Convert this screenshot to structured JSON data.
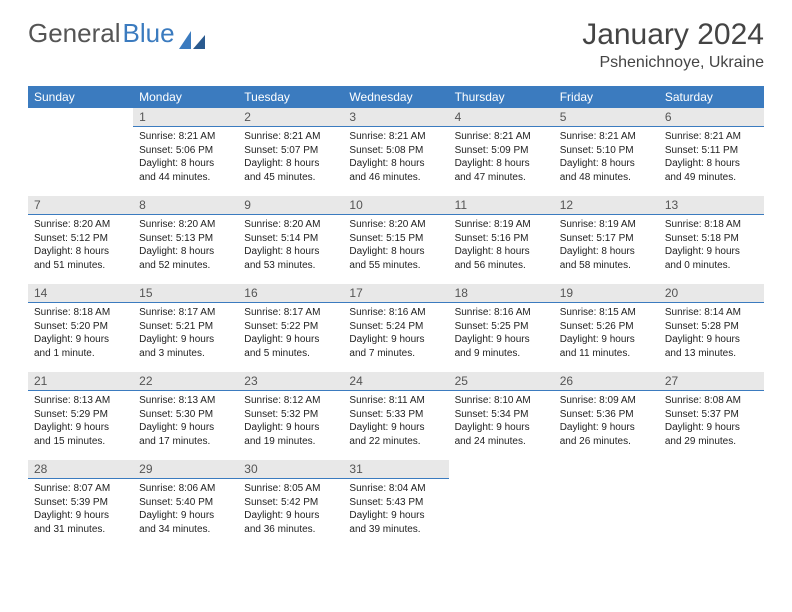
{
  "logo": {
    "part1": "General",
    "part2": "Blue"
  },
  "title": "January 2024",
  "location": "Pshenichnoye, Ukraine",
  "header_bg": "#3b7bbf",
  "daynum_bg": "#e8e8e8",
  "dayHeaders": [
    "Sunday",
    "Monday",
    "Tuesday",
    "Wednesday",
    "Thursday",
    "Friday",
    "Saturday"
  ],
  "grid": [
    [
      null,
      {
        "n": "1",
        "sr": "8:21 AM",
        "ss": "5:06 PM",
        "dl": "8 hours and 44 minutes."
      },
      {
        "n": "2",
        "sr": "8:21 AM",
        "ss": "5:07 PM",
        "dl": "8 hours and 45 minutes."
      },
      {
        "n": "3",
        "sr": "8:21 AM",
        "ss": "5:08 PM",
        "dl": "8 hours and 46 minutes."
      },
      {
        "n": "4",
        "sr": "8:21 AM",
        "ss": "5:09 PM",
        "dl": "8 hours and 47 minutes."
      },
      {
        "n": "5",
        "sr": "8:21 AM",
        "ss": "5:10 PM",
        "dl": "8 hours and 48 minutes."
      },
      {
        "n": "6",
        "sr": "8:21 AM",
        "ss": "5:11 PM",
        "dl": "8 hours and 49 minutes."
      }
    ],
    [
      {
        "n": "7",
        "sr": "8:20 AM",
        "ss": "5:12 PM",
        "dl": "8 hours and 51 minutes."
      },
      {
        "n": "8",
        "sr": "8:20 AM",
        "ss": "5:13 PM",
        "dl": "8 hours and 52 minutes."
      },
      {
        "n": "9",
        "sr": "8:20 AM",
        "ss": "5:14 PM",
        "dl": "8 hours and 53 minutes."
      },
      {
        "n": "10",
        "sr": "8:20 AM",
        "ss": "5:15 PM",
        "dl": "8 hours and 55 minutes."
      },
      {
        "n": "11",
        "sr": "8:19 AM",
        "ss": "5:16 PM",
        "dl": "8 hours and 56 minutes."
      },
      {
        "n": "12",
        "sr": "8:19 AM",
        "ss": "5:17 PM",
        "dl": "8 hours and 58 minutes."
      },
      {
        "n": "13",
        "sr": "8:18 AM",
        "ss": "5:18 PM",
        "dl": "9 hours and 0 minutes."
      }
    ],
    [
      {
        "n": "14",
        "sr": "8:18 AM",
        "ss": "5:20 PM",
        "dl": "9 hours and 1 minute."
      },
      {
        "n": "15",
        "sr": "8:17 AM",
        "ss": "5:21 PM",
        "dl": "9 hours and 3 minutes."
      },
      {
        "n": "16",
        "sr": "8:17 AM",
        "ss": "5:22 PM",
        "dl": "9 hours and 5 minutes."
      },
      {
        "n": "17",
        "sr": "8:16 AM",
        "ss": "5:24 PM",
        "dl": "9 hours and 7 minutes."
      },
      {
        "n": "18",
        "sr": "8:16 AM",
        "ss": "5:25 PM",
        "dl": "9 hours and 9 minutes."
      },
      {
        "n": "19",
        "sr": "8:15 AM",
        "ss": "5:26 PM",
        "dl": "9 hours and 11 minutes."
      },
      {
        "n": "20",
        "sr": "8:14 AM",
        "ss": "5:28 PM",
        "dl": "9 hours and 13 minutes."
      }
    ],
    [
      {
        "n": "21",
        "sr": "8:13 AM",
        "ss": "5:29 PM",
        "dl": "9 hours and 15 minutes."
      },
      {
        "n": "22",
        "sr": "8:13 AM",
        "ss": "5:30 PM",
        "dl": "9 hours and 17 minutes."
      },
      {
        "n": "23",
        "sr": "8:12 AM",
        "ss": "5:32 PM",
        "dl": "9 hours and 19 minutes."
      },
      {
        "n": "24",
        "sr": "8:11 AM",
        "ss": "5:33 PM",
        "dl": "9 hours and 22 minutes."
      },
      {
        "n": "25",
        "sr": "8:10 AM",
        "ss": "5:34 PM",
        "dl": "9 hours and 24 minutes."
      },
      {
        "n": "26",
        "sr": "8:09 AM",
        "ss": "5:36 PM",
        "dl": "9 hours and 26 minutes."
      },
      {
        "n": "27",
        "sr": "8:08 AM",
        "ss": "5:37 PM",
        "dl": "9 hours and 29 minutes."
      }
    ],
    [
      {
        "n": "28",
        "sr": "8:07 AM",
        "ss": "5:39 PM",
        "dl": "9 hours and 31 minutes."
      },
      {
        "n": "29",
        "sr": "8:06 AM",
        "ss": "5:40 PM",
        "dl": "9 hours and 34 minutes."
      },
      {
        "n": "30",
        "sr": "8:05 AM",
        "ss": "5:42 PM",
        "dl": "9 hours and 36 minutes."
      },
      {
        "n": "31",
        "sr": "8:04 AM",
        "ss": "5:43 PM",
        "dl": "9 hours and 39 minutes."
      },
      null,
      null,
      null
    ]
  ],
  "labels": {
    "sunrise": "Sunrise:",
    "sunset": "Sunset:",
    "daylight": "Daylight:"
  }
}
